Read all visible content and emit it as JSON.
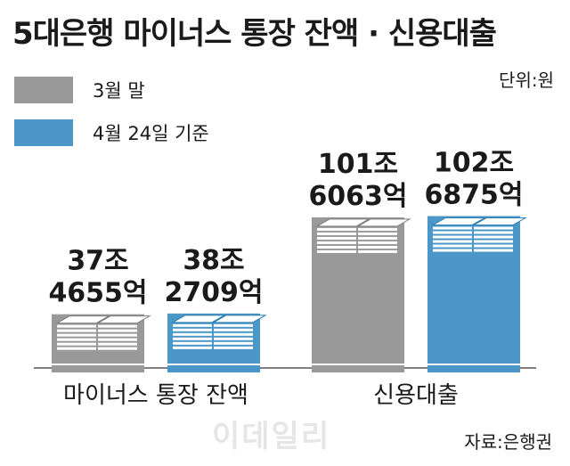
{
  "title": "5대은행 마이너스 통장 잔액 · 신용대출",
  "unit": "단위:원",
  "source": "자료:은행권",
  "watermark": "이데일리",
  "colors": {
    "march": "#999999",
    "april": "#4a97c8",
    "text": "#1a1a1a"
  },
  "legend": [
    {
      "label": "3월 말",
      "color": "#999999"
    },
    {
      "label": "4월 24일 기준",
      "color": "#4a97c8"
    }
  ],
  "chart_data": {
    "type": "bar",
    "title": "5대은행 마이너스 통장 잔액 · 신용대출",
    "unit": "단위:원",
    "categories": [
      "마이너스 통장 잔액",
      "신용대출"
    ],
    "series": [
      {
        "name": "3월 말",
        "values": [
          37.4655,
          101.6063
        ],
        "labels": [
          [
            "37조",
            "4655억"
          ],
          [
            "101조",
            "6063억"
          ]
        ]
      },
      {
        "name": "4월 24일 기준",
        "values": [
          38.2709,
          102.6875
        ],
        "labels": [
          [
            "38조",
            "2709억"
          ],
          [
            "102조",
            "6875억"
          ]
        ]
      }
    ],
    "legend_position": "top-left",
    "grid": false
  }
}
